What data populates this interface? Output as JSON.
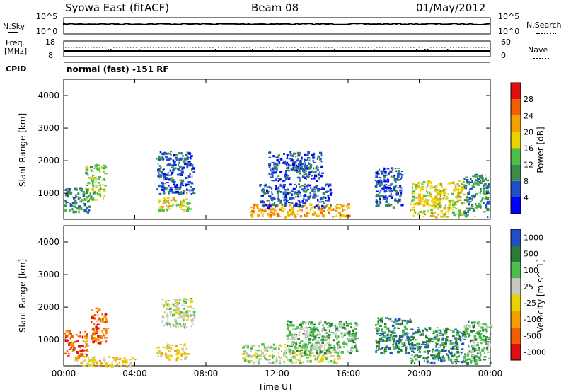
{
  "header": {
    "title": "Syowa East (fitACF)",
    "beam": "Beam 08",
    "date": "01/May/2012"
  },
  "noise_panel": {
    "left_label": "N.Sky",
    "right_label": "N.Search",
    "y_ticks_left": [
      "10^5",
      "10^0"
    ],
    "y_ticks_right": [
      "10^5",
      "10^0"
    ]
  },
  "freq_panel": {
    "left_label_line1": "Freq.",
    "left_label_line2": "[MHz]",
    "right_label": "Nave",
    "y_ticks_left": [
      "18",
      "8"
    ],
    "y_ticks_right": [
      "60",
      "0"
    ]
  },
  "cpid": {
    "label": "CPID",
    "value": "normal (fast) -151 RF"
  },
  "chart_data": [
    {
      "type": "heatmap",
      "name": "power",
      "ylabel": "Slant Range [km]",
      "x_ticks": [
        "00:00",
        "04:00",
        "08:00",
        "12:00",
        "16:00",
        "20:00",
        "00:00"
      ],
      "y_ticks": [
        1000,
        2000,
        3000,
        4000
      ],
      "ylim": [
        200,
        4500
      ],
      "xlim_hours": [
        0,
        24
      ],
      "colorbar": {
        "label": "Power [dB]",
        "ticks": [
          "4",
          "8",
          "12",
          "16",
          "20",
          "24",
          "28"
        ],
        "colors": [
          "#0000ff",
          "#2050c8",
          "#3a8c4a",
          "#4bbf4b",
          "#e8d200",
          "#f59f00",
          "#f06000",
          "#e01010"
        ]
      },
      "patches": [
        {
          "t0": 0.0,
          "t1": 1.4,
          "r0": 450,
          "r1": 1200,
          "level": 2
        },
        {
          "t0": 1.2,
          "t1": 2.3,
          "r0": 800,
          "r1": 1900,
          "level": 3
        },
        {
          "t0": 5.3,
          "t1": 7.1,
          "r0": 500,
          "r1": 900,
          "level": 4
        },
        {
          "t0": 5.2,
          "t1": 7.3,
          "r0": 1000,
          "r1": 2300,
          "level": 1
        },
        {
          "t0": 10.5,
          "t1": 16.0,
          "r0": 300,
          "r1": 700,
          "level": 5
        },
        {
          "t0": 11.0,
          "t1": 15.0,
          "r0": 600,
          "r1": 1300,
          "level": 1
        },
        {
          "t0": 11.5,
          "t1": 14.5,
          "r0": 1400,
          "r1": 2300,
          "level": 1
        },
        {
          "t0": 17.5,
          "t1": 19.0,
          "r0": 600,
          "r1": 1800,
          "level": 1
        },
        {
          "t0": 19.5,
          "t1": 22.5,
          "r0": 300,
          "r1": 1400,
          "level": 4
        },
        {
          "t0": 22.5,
          "t1": 23.9,
          "r0": 300,
          "r1": 1600,
          "level": 2
        }
      ]
    },
    {
      "type": "heatmap",
      "name": "velocity",
      "xlabel": "Time UT",
      "ylabel": "Slant Range [km]",
      "x_ticks": [
        "00:00",
        "04:00",
        "08:00",
        "12:00",
        "16:00",
        "20:00",
        "00:00"
      ],
      "y_ticks": [
        1000,
        2000,
        3000,
        4000
      ],
      "ylim": [
        200,
        4500
      ],
      "xlim_hours": [
        0,
        24
      ],
      "colorbar": {
        "label": "Velocity [m s^-1]",
        "ticks": [
          "1000",
          "500",
          "100",
          "25",
          "-25",
          "-100",
          "-500",
          "-1000"
        ],
        "colors": [
          "#2050c8",
          "#2a7a3a",
          "#4bbf4b",
          "#c8c8c0",
          "#e8d200",
          "#f59f00",
          "#f06000",
          "#e01010"
        ]
      },
      "patches": [
        {
          "t0": 0.0,
          "t1": 1.3,
          "r0": 500,
          "r1": 1300,
          "level": 6
        },
        {
          "t0": 0.5,
          "t1": 4.0,
          "r0": 200,
          "r1": 500,
          "level": 4
        },
        {
          "t0": 1.5,
          "t1": 2.4,
          "r0": 900,
          "r1": 2000,
          "level": 6
        },
        {
          "t0": 5.2,
          "t1": 7.0,
          "r0": 400,
          "r1": 900,
          "level": 4
        },
        {
          "t0": 5.5,
          "t1": 7.3,
          "r0": 1400,
          "r1": 2300,
          "level": 3
        },
        {
          "t0": 10.0,
          "t1": 15.5,
          "r0": 300,
          "r1": 900,
          "level": 3
        },
        {
          "t0": 12.5,
          "t1": 16.5,
          "r0": 600,
          "r1": 1600,
          "level": 2
        },
        {
          "t0": 17.5,
          "t1": 19.5,
          "r0": 600,
          "r1": 1700,
          "level": 1
        },
        {
          "t0": 19.5,
          "t1": 22.5,
          "r0": 300,
          "r1": 1400,
          "level": 1
        },
        {
          "t0": 22.5,
          "t1": 24.0,
          "r0": 300,
          "r1": 1600,
          "level": 2
        }
      ]
    }
  ]
}
